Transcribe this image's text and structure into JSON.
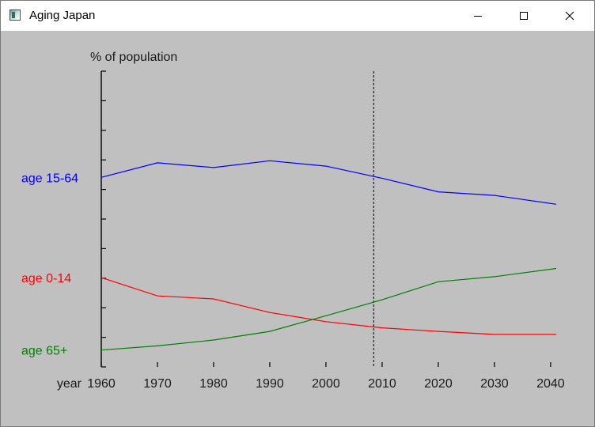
{
  "window": {
    "title": "Aging Japan",
    "icon": "app-window-icon",
    "controls": [
      "minimize-icon",
      "maximize-icon",
      "close-icon"
    ]
  },
  "chart_data": {
    "type": "line",
    "ylabel": "% of population",
    "xlabel": "year",
    "xlim": [
      1960,
      2041
    ],
    "ylim": [
      0,
      100
    ],
    "x_ticks": [
      1960,
      1970,
      1980,
      1990,
      2000,
      2010,
      2020,
      2030,
      2040
    ],
    "y_tick_count": 11,
    "grid": false,
    "marker_year": 2008.5,
    "series": [
      {
        "name": "age 15-64",
        "color": "#0000ff",
        "x": [
          1960,
          1970,
          1980,
          1990,
          2000,
          2010,
          2020,
          2030,
          2041
        ],
        "y": [
          64.1,
          69.0,
          67.4,
          69.7,
          67.9,
          63.8,
          59.2,
          58.0,
          55.0
        ]
      },
      {
        "name": "age 0-14",
        "color": "#ff0000",
        "x": [
          1960,
          1970,
          1980,
          1990,
          2000,
          2010,
          2020,
          2030,
          2041
        ],
        "y": [
          30.2,
          24.0,
          23.0,
          18.4,
          15.3,
          13.2,
          12.0,
          11.0,
          11.0
        ]
      },
      {
        "name": "age 65+",
        "color": "#008000",
        "x": [
          1960,
          1970,
          1980,
          1990,
          2000,
          2010,
          2020,
          2030,
          2041
        ],
        "y": [
          5.7,
          7.1,
          9.1,
          12.0,
          17.3,
          22.7,
          28.8,
          30.5,
          33.3
        ]
      }
    ]
  }
}
